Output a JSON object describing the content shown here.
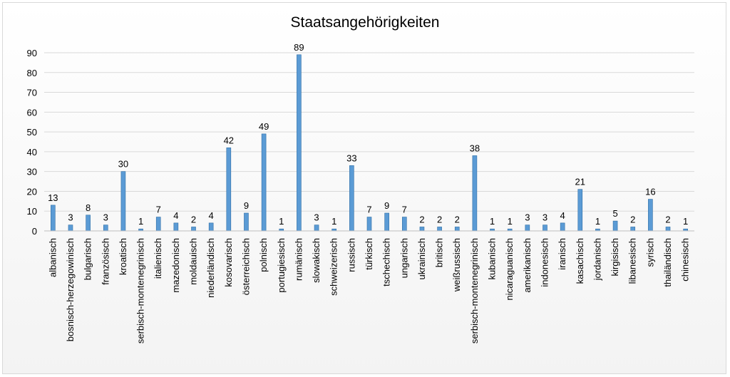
{
  "chart_data": {
    "type": "bar",
    "title": "Staatsangehörigkeiten",
    "xlabel": "",
    "ylabel": "",
    "ylim": [
      0,
      90
    ],
    "yticks": [
      0,
      10,
      20,
      30,
      40,
      50,
      60,
      70,
      80,
      90
    ],
    "grid": true,
    "legend": "none",
    "bar_color": "#5b9bd5",
    "categories": [
      "albanisch",
      "bosnisch-herzegowinisch",
      "bulgarisch",
      "französisch",
      "kroatisch",
      "serbisch-montenegrinisch",
      "italienisch",
      "mazedonisch",
      "moldauisch",
      "niederländisch",
      "kosovarisch",
      "österreichisch",
      "polnisch",
      "portugiesisch",
      "rumänisch",
      "slowakisch",
      "schweizerisch",
      "russisch",
      "türkisch",
      "tschechisch",
      "ungarisch",
      "ukrainisch",
      "britisch",
      "weißrussisch",
      "serbisch-montenegrinisch",
      "kubanisch",
      "nicaraguanisch",
      "amerikanisch",
      "indonesisch",
      "iranisch",
      "kasachisch",
      "jordanisch",
      "kirgisisch",
      "libanesisch",
      "syrisch",
      "thailändisch",
      "chinesisch"
    ],
    "values": [
      13,
      3,
      8,
      3,
      30,
      1,
      7,
      4,
      2,
      4,
      42,
      9,
      49,
      1,
      89,
      3,
      1,
      33,
      7,
      9,
      7,
      2,
      2,
      2,
      38,
      1,
      1,
      3,
      3,
      4,
      21,
      1,
      5,
      2,
      16,
      2,
      1
    ]
  }
}
